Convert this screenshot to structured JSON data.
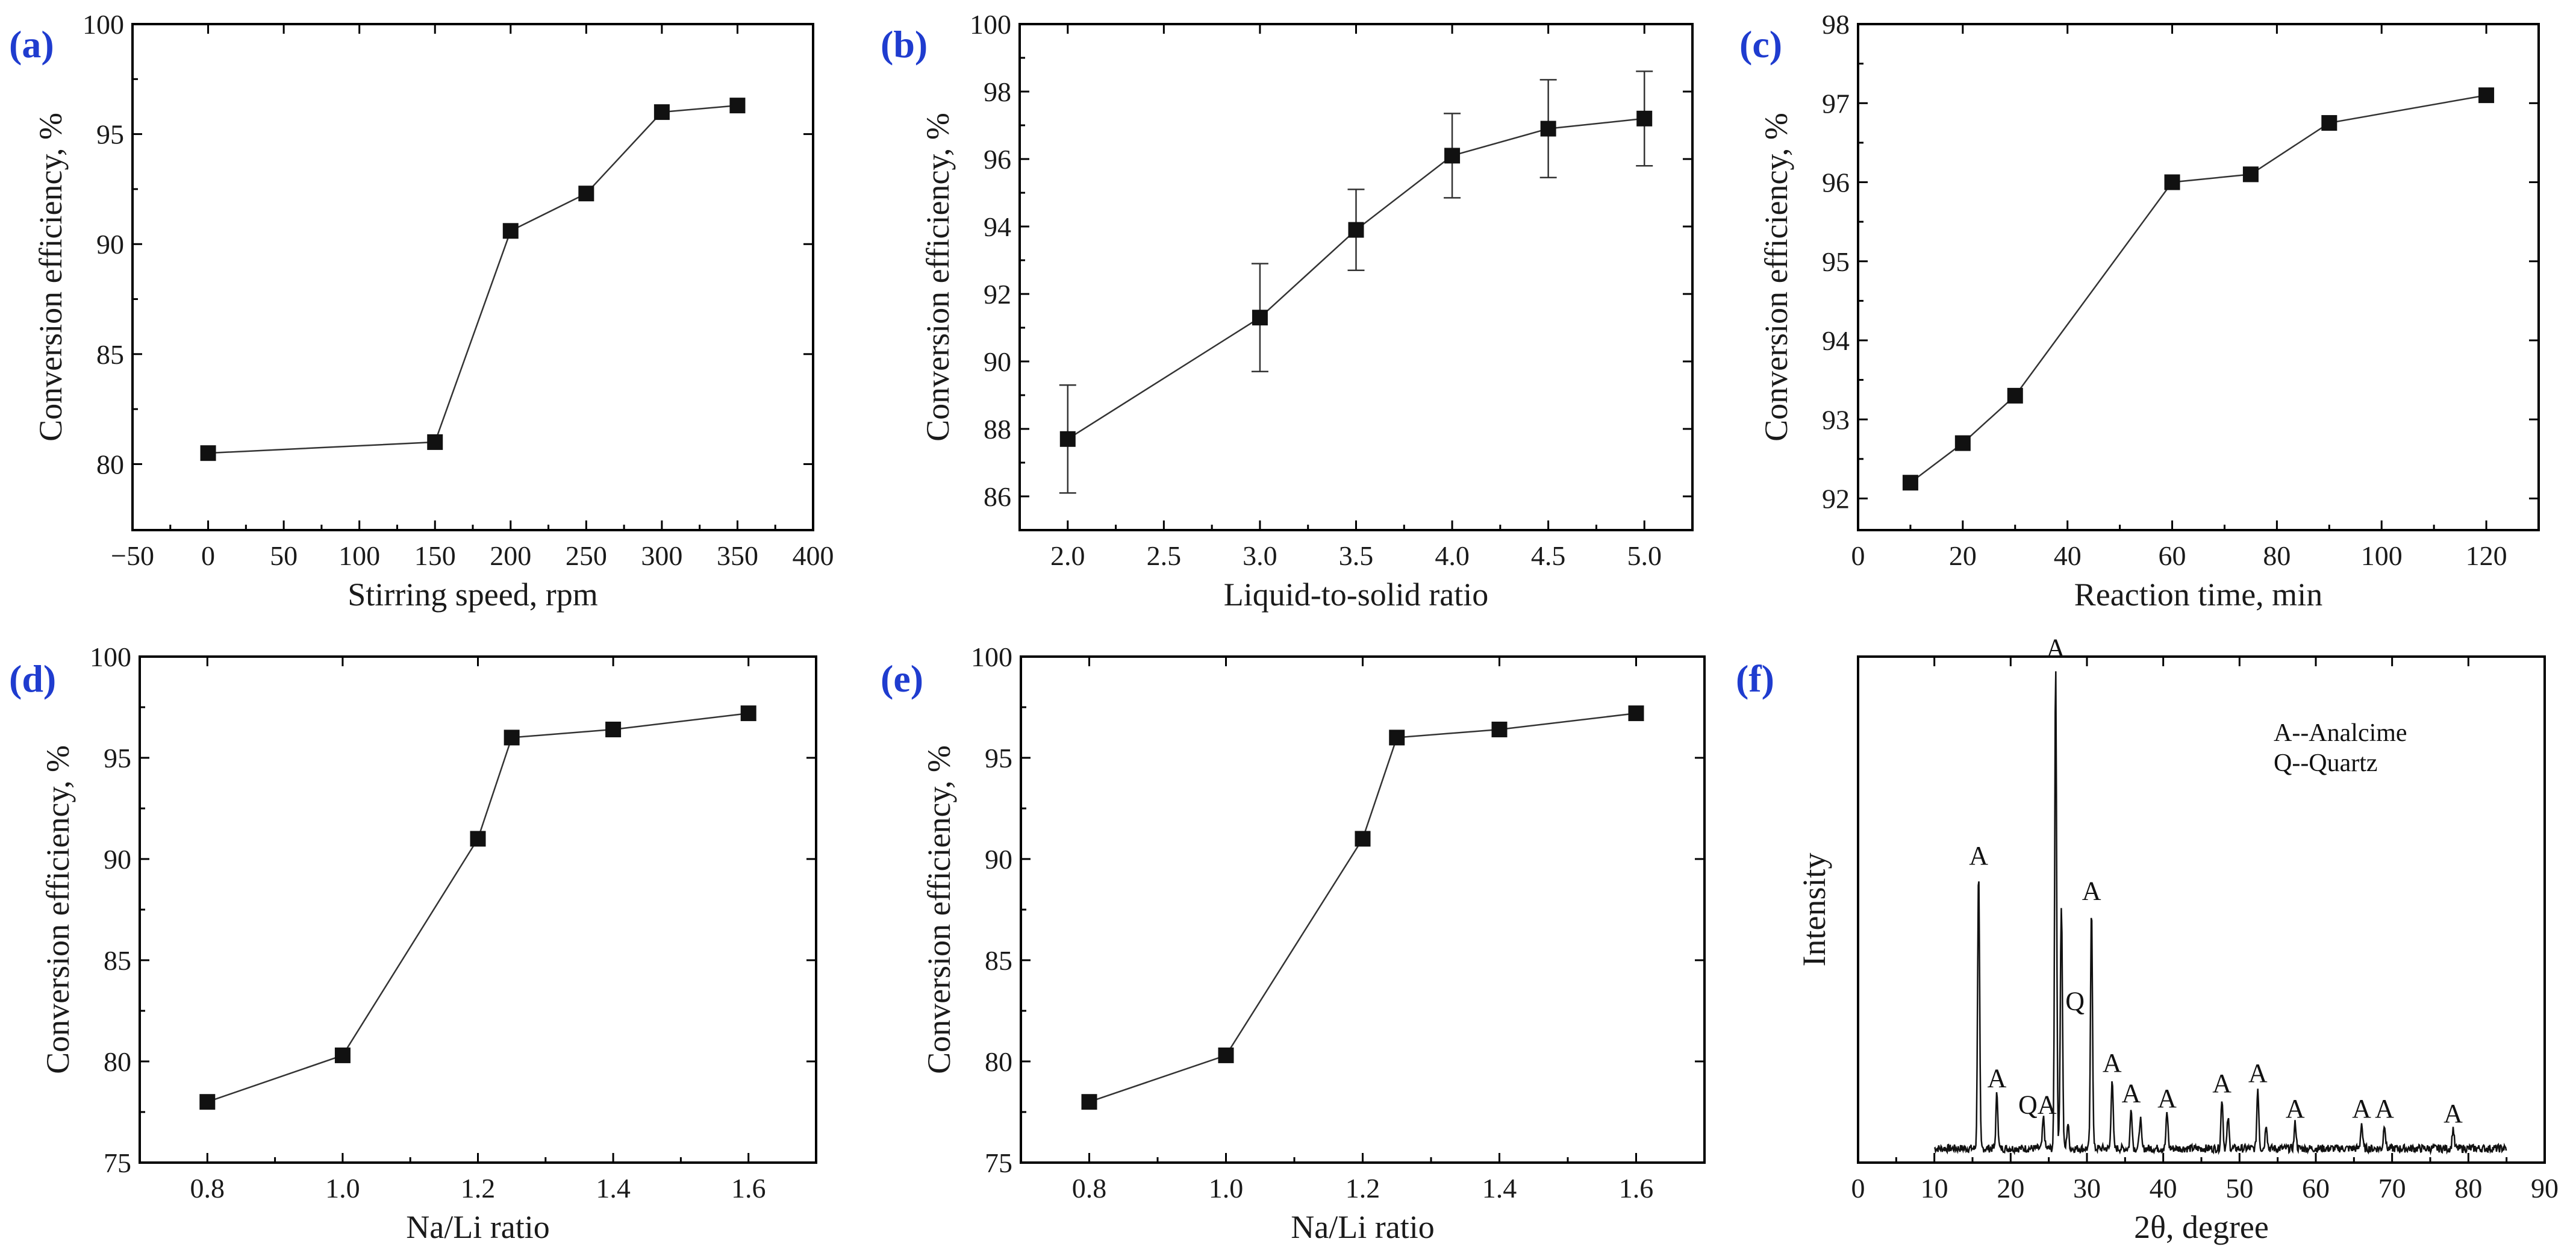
{
  "figure": {
    "label_color": "#1f3ccf",
    "line_color": "#333333",
    "marker_color": "#111111"
  },
  "chart_data": [
    {
      "panel": "(a)",
      "type": "line",
      "xlabel": "Stirring speed, rpm",
      "ylabel": "Conversion efficiency, %",
      "xlim": [
        -50,
        400
      ],
      "ylim": [
        77,
        100
      ],
      "xticks": [
        -50,
        0,
        50,
        100,
        150,
        200,
        250,
        300,
        350,
        400
      ],
      "yticks": [
        80,
        85,
        90,
        95,
        100
      ],
      "x": [
        0,
        150,
        200,
        250,
        300,
        350
      ],
      "y": [
        80.5,
        81.0,
        90.6,
        92.3,
        96.0,
        96.3
      ]
    },
    {
      "panel": "(b)",
      "type": "line",
      "xlabel": "Liquid-to-solid ratio",
      "ylabel": "Conversion efficiency, %",
      "xlim": [
        1.75,
        5.25
      ],
      "ylim": [
        85,
        100
      ],
      "xticks": [
        2.0,
        2.5,
        3.0,
        3.5,
        4.0,
        4.5,
        5.0
      ],
      "ytick_labels": [
        "86",
        "88",
        "90",
        "92",
        "94",
        "96",
        "98",
        "100"
      ],
      "xtick_labels": [
        "2.0",
        "2.5",
        "3.0",
        "3.5",
        "4.0",
        "4.5",
        "5.0"
      ],
      "yticks": [
        86,
        88,
        90,
        92,
        94,
        96,
        98,
        100
      ],
      "x": [
        2.0,
        3.0,
        3.5,
        4.0,
        4.5,
        5.0
      ],
      "y": [
        87.7,
        91.3,
        93.9,
        96.1,
        96.9,
        97.2
      ],
      "error": [
        1.6,
        1.6,
        1.2,
        1.25,
        1.45,
        1.4
      ]
    },
    {
      "panel": "(c)",
      "type": "line",
      "xlabel": "Reaction time, min",
      "ylabel": "Conversion efficiency, %",
      "xlim": [
        0,
        130
      ],
      "ylim": [
        91.6,
        98
      ],
      "xticks": [
        0,
        20,
        40,
        60,
        80,
        100,
        120
      ],
      "yticks": [
        92,
        93,
        94,
        95,
        96,
        97,
        98
      ],
      "x": [
        10,
        20,
        30,
        60,
        75,
        90,
        120
      ],
      "y": [
        92.2,
        92.7,
        93.3,
        96.0,
        96.1,
        96.75,
        97.1
      ]
    },
    {
      "panel": "(d)",
      "type": "line",
      "xlabel": "Na/Li ratio",
      "ylabel": "Conversion efficiency, %",
      "xlim": [
        0.7,
        1.7
      ],
      "ylim": [
        75,
        100
      ],
      "xticks": [
        0.8,
        1.0,
        1.2,
        1.4,
        1.6
      ],
      "xtick_labels": [
        "0.8",
        "1.0",
        "1.2",
        "1.4",
        "1.6"
      ],
      "yticks": [
        75,
        80,
        85,
        90,
        95,
        100
      ],
      "x": [
        0.8,
        1.0,
        1.2,
        1.25,
        1.4,
        1.6
      ],
      "y": [
        78.0,
        80.3,
        91.0,
        96.0,
        96.4,
        97.2
      ]
    },
    {
      "panel": "(e)",
      "type": "line",
      "xlabel": "Na/Li ratio",
      "ylabel": "Conversion efficiency, %",
      "xlim": [
        0.7,
        1.7
      ],
      "ylim": [
        75,
        100
      ],
      "xticks": [
        0.8,
        1.0,
        1.2,
        1.4,
        1.6
      ],
      "xtick_labels": [
        "0.8",
        "1.0",
        "1.2",
        "1.4",
        "1.6"
      ],
      "yticks": [
        75,
        80,
        85,
        90,
        95,
        100
      ],
      "x": [
        0.8,
        1.0,
        1.2,
        1.25,
        1.4,
        1.6
      ],
      "y": [
        78.0,
        80.3,
        91.0,
        96.0,
        96.4,
        97.2
      ]
    },
    {
      "panel": "(f)",
      "type": "line",
      "xlabel": "2θ, degree",
      "ylabel": "Intensity",
      "xlim": [
        0,
        90
      ],
      "ylim": [
        0,
        100
      ],
      "xticks": [
        0,
        10,
        20,
        30,
        40,
        50,
        60,
        70,
        80,
        90
      ],
      "yticks": [],
      "legend": [
        "A--Analcime",
        "Q--Quartz"
      ],
      "pattern_range": [
        10,
        85
      ],
      "peaks": [
        {
          "x": 15.8,
          "y": 55,
          "label": "A"
        },
        {
          "x": 18.2,
          "y": 11,
          "label": "A"
        },
        {
          "x": 24.3,
          "y": 6,
          "label": "QA"
        },
        {
          "x": 25.9,
          "y": 96,
          "label": "A"
        },
        {
          "x": 26.6,
          "y": 26,
          "label": ""
        },
        {
          "x": 27.5,
          "y": 5,
          "label": ""
        },
        {
          "x": 30.6,
          "y": 48,
          "label": "A"
        },
        {
          "x": 26.7,
          "y": 26,
          "label": "Q"
        },
        {
          "x": 33.3,
          "y": 14,
          "label": "A"
        },
        {
          "x": 35.8,
          "y": 8,
          "label": "A"
        },
        {
          "x": 37.0,
          "y": 6,
          "label": ""
        },
        {
          "x": 40.5,
          "y": 7,
          "label": "A"
        },
        {
          "x": 47.7,
          "y": 10,
          "label": "A"
        },
        {
          "x": 48.5,
          "y": 6,
          "label": ""
        },
        {
          "x": 52.4,
          "y": 12,
          "label": "A"
        },
        {
          "x": 53.5,
          "y": 5,
          "label": ""
        },
        {
          "x": 57.3,
          "y": 5,
          "label": "A"
        },
        {
          "x": 66.0,
          "y": 5,
          "label": "A"
        },
        {
          "x": 69.0,
          "y": 5,
          "label": "A"
        },
        {
          "x": 78.0,
          "y": 4,
          "label": "A"
        }
      ]
    }
  ]
}
